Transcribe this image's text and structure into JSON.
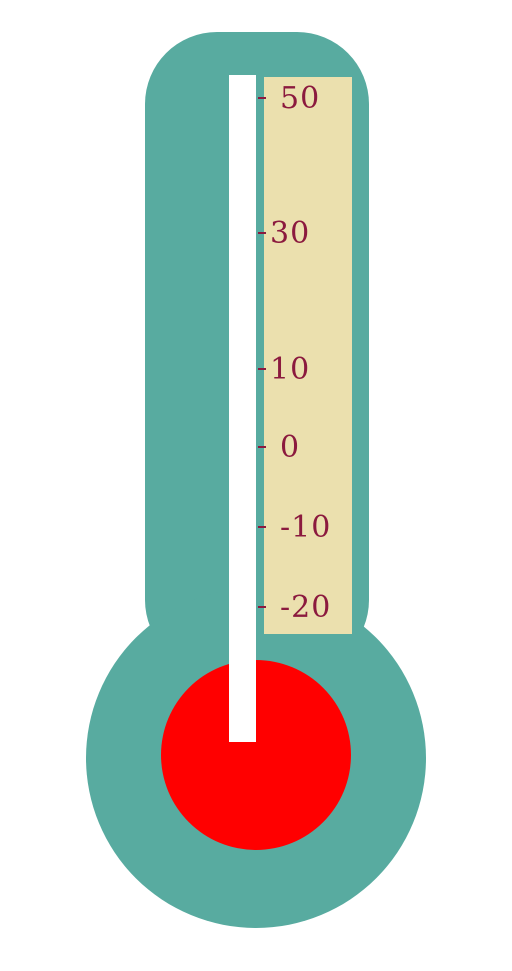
{
  "colors": {
    "body": "#58aba0",
    "scale_panel": "#ebe0ae",
    "tube": "#ffffff",
    "bulb": "#ff0000",
    "ticks": "#8b1a3e"
  },
  "scale": {
    "ticks": [
      {
        "value": 50,
        "label": "50"
      },
      {
        "value": 30,
        "label": "30"
      },
      {
        "value": 10,
        "label": "10"
      },
      {
        "value": 0,
        "label": "0"
      },
      {
        "value": -10,
        "label": "-10"
      },
      {
        "value": -20,
        "label": "-20"
      }
    ]
  }
}
